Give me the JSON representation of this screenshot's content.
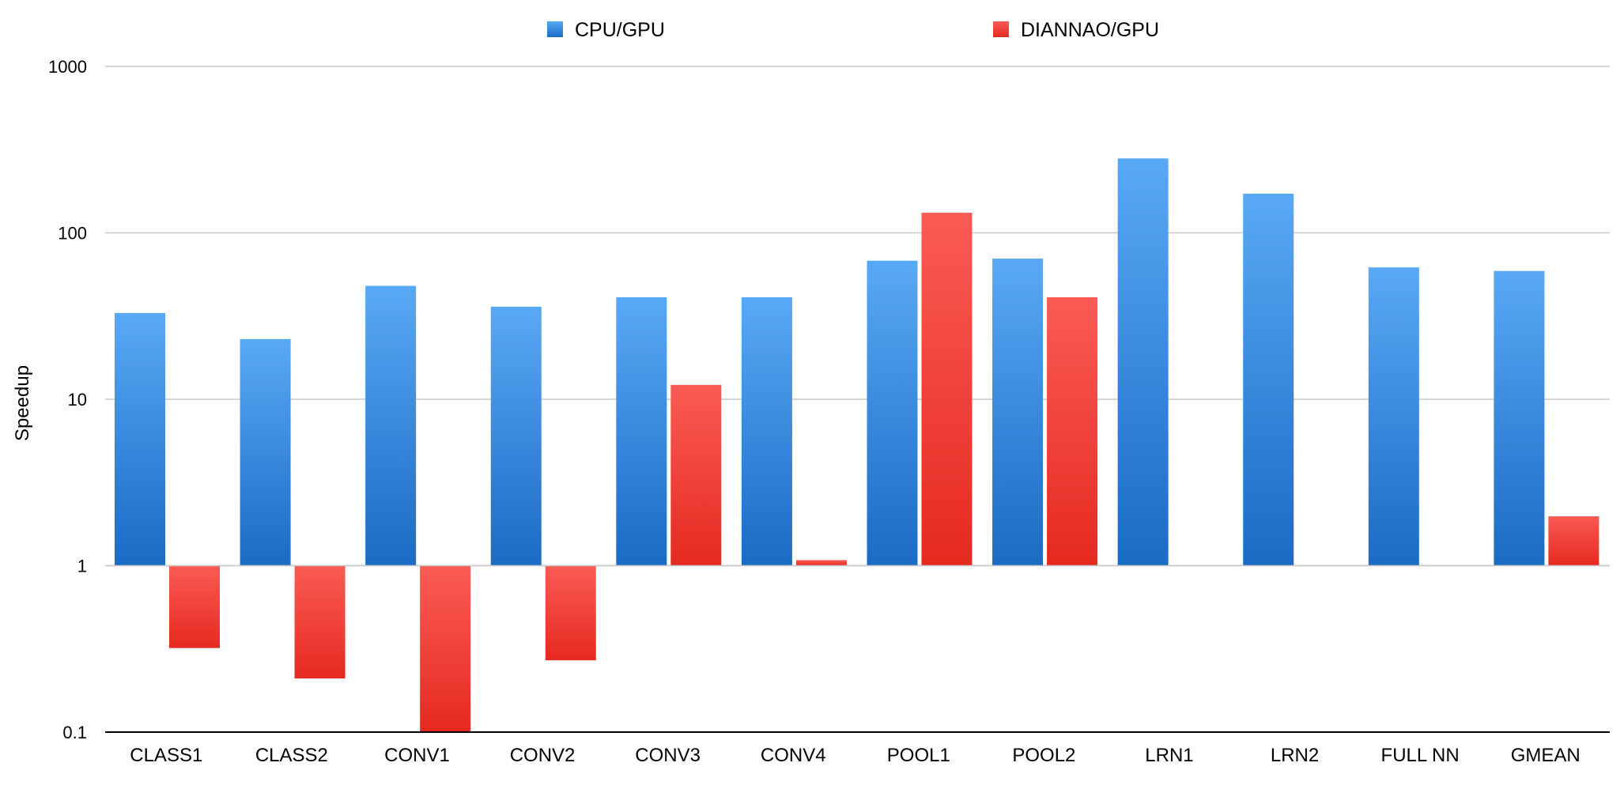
{
  "chart_data": {
    "type": "bar",
    "title": "",
    "xlabel": "",
    "ylabel": "Speedup",
    "yscale": "log",
    "ylim": [
      0.1,
      1000
    ],
    "baseline": 1,
    "yticks": [
      0.1,
      1,
      10,
      100,
      1000
    ],
    "ytick_labels": [
      "0.1",
      "1",
      "10",
      "100",
      "1000"
    ],
    "grid": true,
    "legend_position": "top-center",
    "categories": [
      "CLASS1",
      "CLASS2",
      "CONV1",
      "CONV2",
      "CONV3",
      "CONV4",
      "POOL1",
      "POOL2",
      "LRN1",
      "LRN2",
      "FULL NN",
      "GMEAN"
    ],
    "series": [
      {
        "name": "CPU/GPU",
        "color_top": "#58a9f5",
        "color_bottom": "#1a6bc4",
        "values": [
          33,
          23,
          48,
          36,
          41,
          41,
          68,
          70,
          280,
          172,
          62,
          59
        ]
      },
      {
        "name": "DIANNAO/GPU",
        "color_top": "#fa5b55",
        "color_bottom": "#e52a20",
        "values": [
          0.32,
          0.21,
          0.1,
          0.27,
          12.2,
          1.08,
          132,
          41,
          null,
          null,
          null,
          1.98
        ]
      }
    ]
  }
}
